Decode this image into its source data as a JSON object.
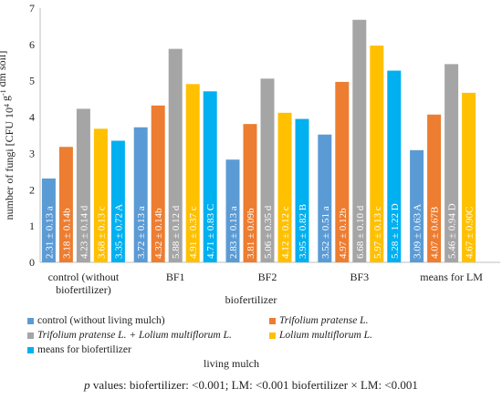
{
  "chart_data": {
    "type": "bar",
    "ylabel_main": "number of fungi  [CFU 10",
    "ylabel_exp1": "4",
    "ylabel_mid": " g",
    "ylabel_exp2": "-1",
    "ylabel_tail": " dm soil]",
    "xlabel": "biofertilizer",
    "ylim": [
      0,
      7
    ],
    "yticks": [
      "0",
      "1",
      "2",
      "3",
      "4",
      "5",
      "6",
      "7"
    ],
    "grid": false,
    "legend_position": "bottom",
    "legend_title": "living  mulch",
    "categories": [
      [
        "control (without",
        "biofertilizer)"
      ],
      [
        "BF1"
      ],
      [
        "BF2"
      ],
      [
        "BF3"
      ],
      [
        "means for LM"
      ]
    ],
    "series": [
      {
        "name": "control (without living mulch)",
        "italic": false,
        "color": "#5b9bd5",
        "values": [
          2.31,
          3.72,
          2.83,
          3.52,
          3.09
        ],
        "labels": [
          "2.31 ± 0.13 a",
          "3.72 ± 0.13 a",
          "2.83 ± 0.13 a",
          "3.52 ± 0.51 a",
          "3.09 ± 0.63 A"
        ]
      },
      {
        "name": "Trifolium pratense L.",
        "italic": true,
        "color": "#ed7d31",
        "values": [
          3.18,
          4.32,
          3.81,
          4.97,
          4.07
        ],
        "labels": [
          "3.18 ± 0.14b",
          "4.32 ± 0.14b",
          "3.81 ± 0.09b",
          "4.97 ± 0.12b",
          "4.07 ± 0.67B"
        ]
      },
      {
        "name": "Trifolium pratense L. + Lolium multiflorum L.",
        "italic": true,
        "color": "#a5a5a5",
        "values": [
          4.23,
          5.88,
          5.06,
          6.68,
          5.46
        ],
        "labels": [
          "4.23 ± 0.14 d",
          "5.88 ± 0.12 d",
          "5.06 ± 0.35 d",
          "6.68 ± 0.10 d",
          "5.46 ± 0.94 D"
        ]
      },
      {
        "name": "Lolium multiflorum L.",
        "italic": true,
        "color": "#ffc000",
        "values": [
          3.68,
          4.91,
          4.12,
          5.97,
          4.67
        ],
        "labels": [
          "3.68 ± 0.13 c",
          "4.91 ± 0.37 c",
          "4.12 ± 0.12 c",
          "5.97 ± 0.13 c",
          "4.67 ± 0.90C"
        ]
      },
      {
        "name": "means for biofertilizer",
        "italic": false,
        "color": "#00b0f0",
        "values": [
          3.35,
          4.71,
          3.95,
          5.28,
          null
        ],
        "labels": [
          "3.35 ± 0.72 A",
          "4.71 ± 0.83 C",
          "3.95 ± 0.82 B",
          "5.28 ± 1.22 D",
          ""
        ]
      }
    ]
  },
  "legend": {
    "title": "living  mulch",
    "items": [
      {
        "label": "control (without living mulch)",
        "italic": false,
        "color": "#5b9bd5"
      },
      {
        "label": "Trifolium pratense L.",
        "italic": true,
        "color": "#ed7d31"
      },
      {
        "label": "Trifolium pratense L. + Lolium multiflorum L.",
        "italic": true,
        "color": "#a5a5a5"
      },
      {
        "label": "Lolium multiflorum L.",
        "italic": true,
        "color": "#ffc000"
      },
      {
        "label": "means for biofertilizer",
        "italic": false,
        "color": "#00b0f0"
      }
    ]
  },
  "footnote": {
    "p": "p",
    "text": " values: biofertilizer: <0.001; LM: <0.001 biofertilizer × LM: <0.001"
  }
}
